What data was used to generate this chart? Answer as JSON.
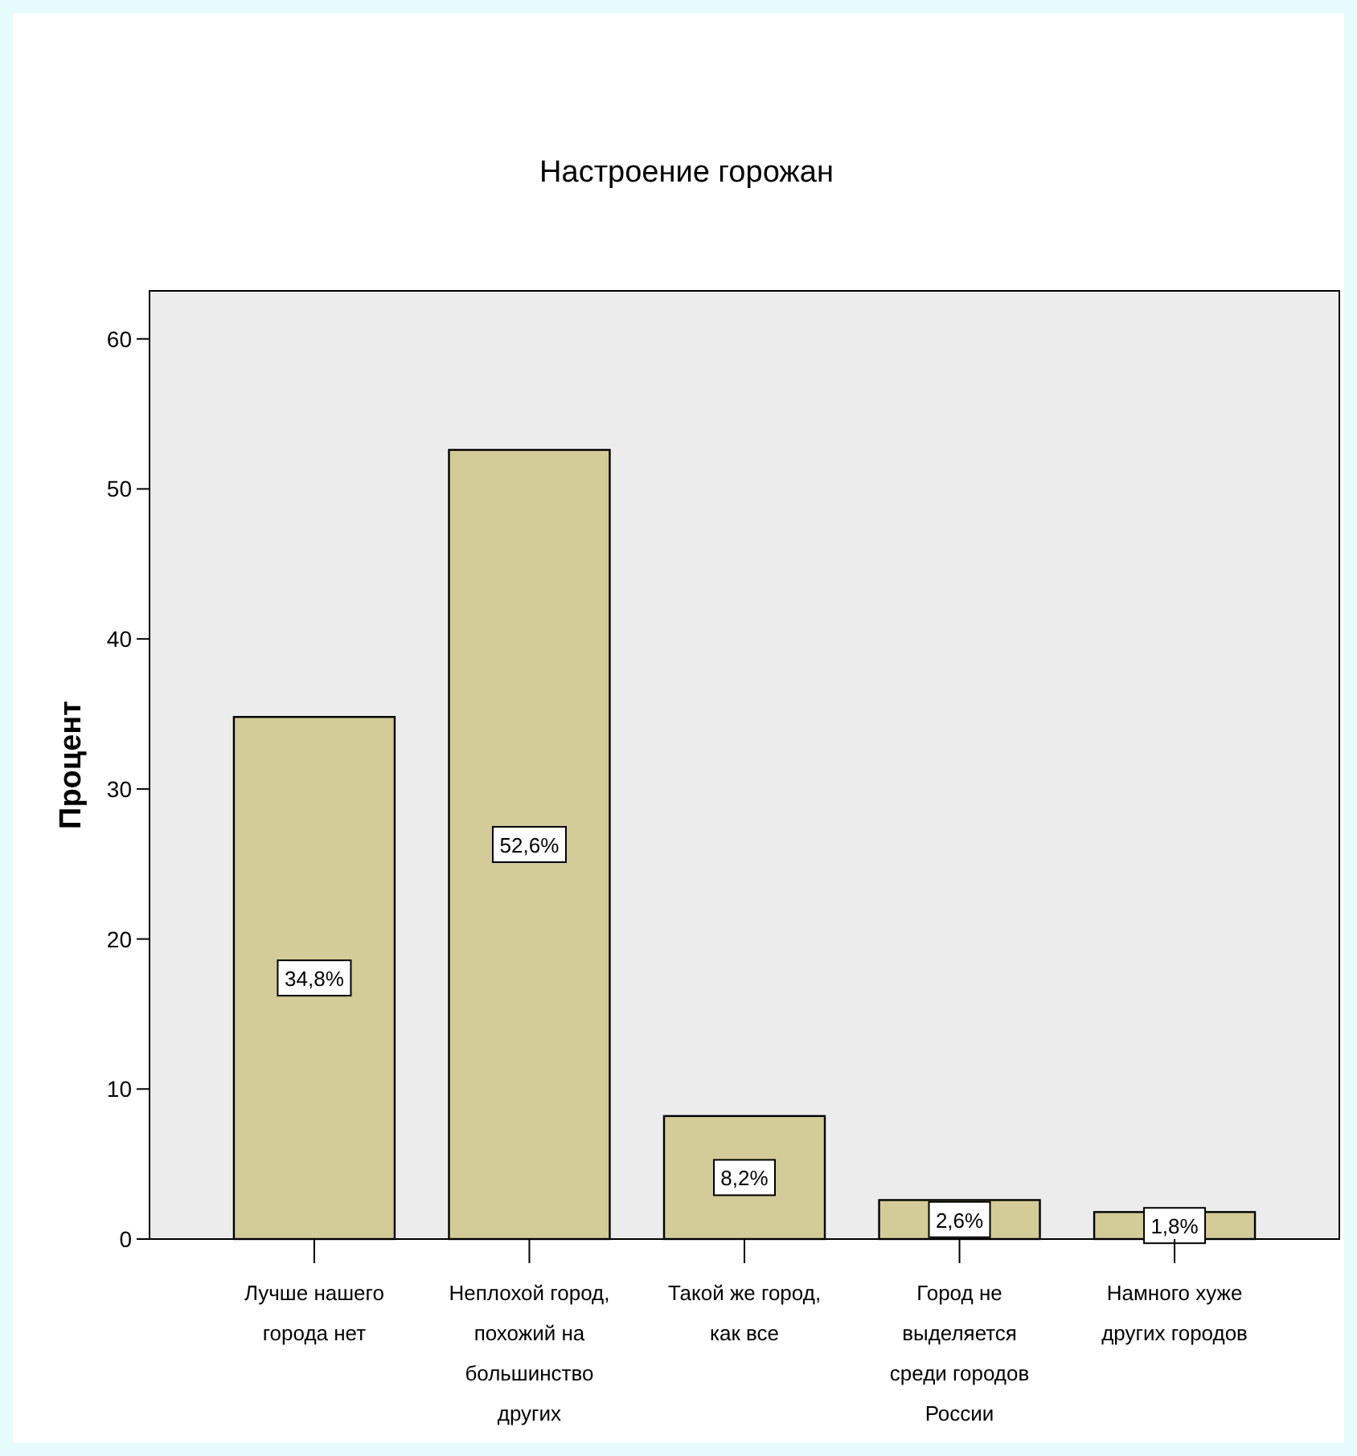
{
  "chart_data": {
    "type": "bar",
    "title": "Настроение горожан",
    "ylabel": "Процент",
    "categories": [
      "Лучше нашего города нет",
      "Неплохой город, похожий на большинство других",
      "Такой же город, как все",
      "Город не выделяется среди городов России",
      "Намного хуже других городов"
    ],
    "values": [
      34.8,
      52.6,
      8.2,
      2.6,
      1.8
    ],
    "value_labels": [
      "34,8%",
      "52,6%",
      "8,2%",
      "2,6%",
      "1,8%"
    ],
    "color": "#d3cb98",
    "ylim": [
      0,
      63.2
    ],
    "yticks": [
      0,
      10,
      20,
      30,
      40,
      50,
      60
    ],
    "grid": false
  }
}
